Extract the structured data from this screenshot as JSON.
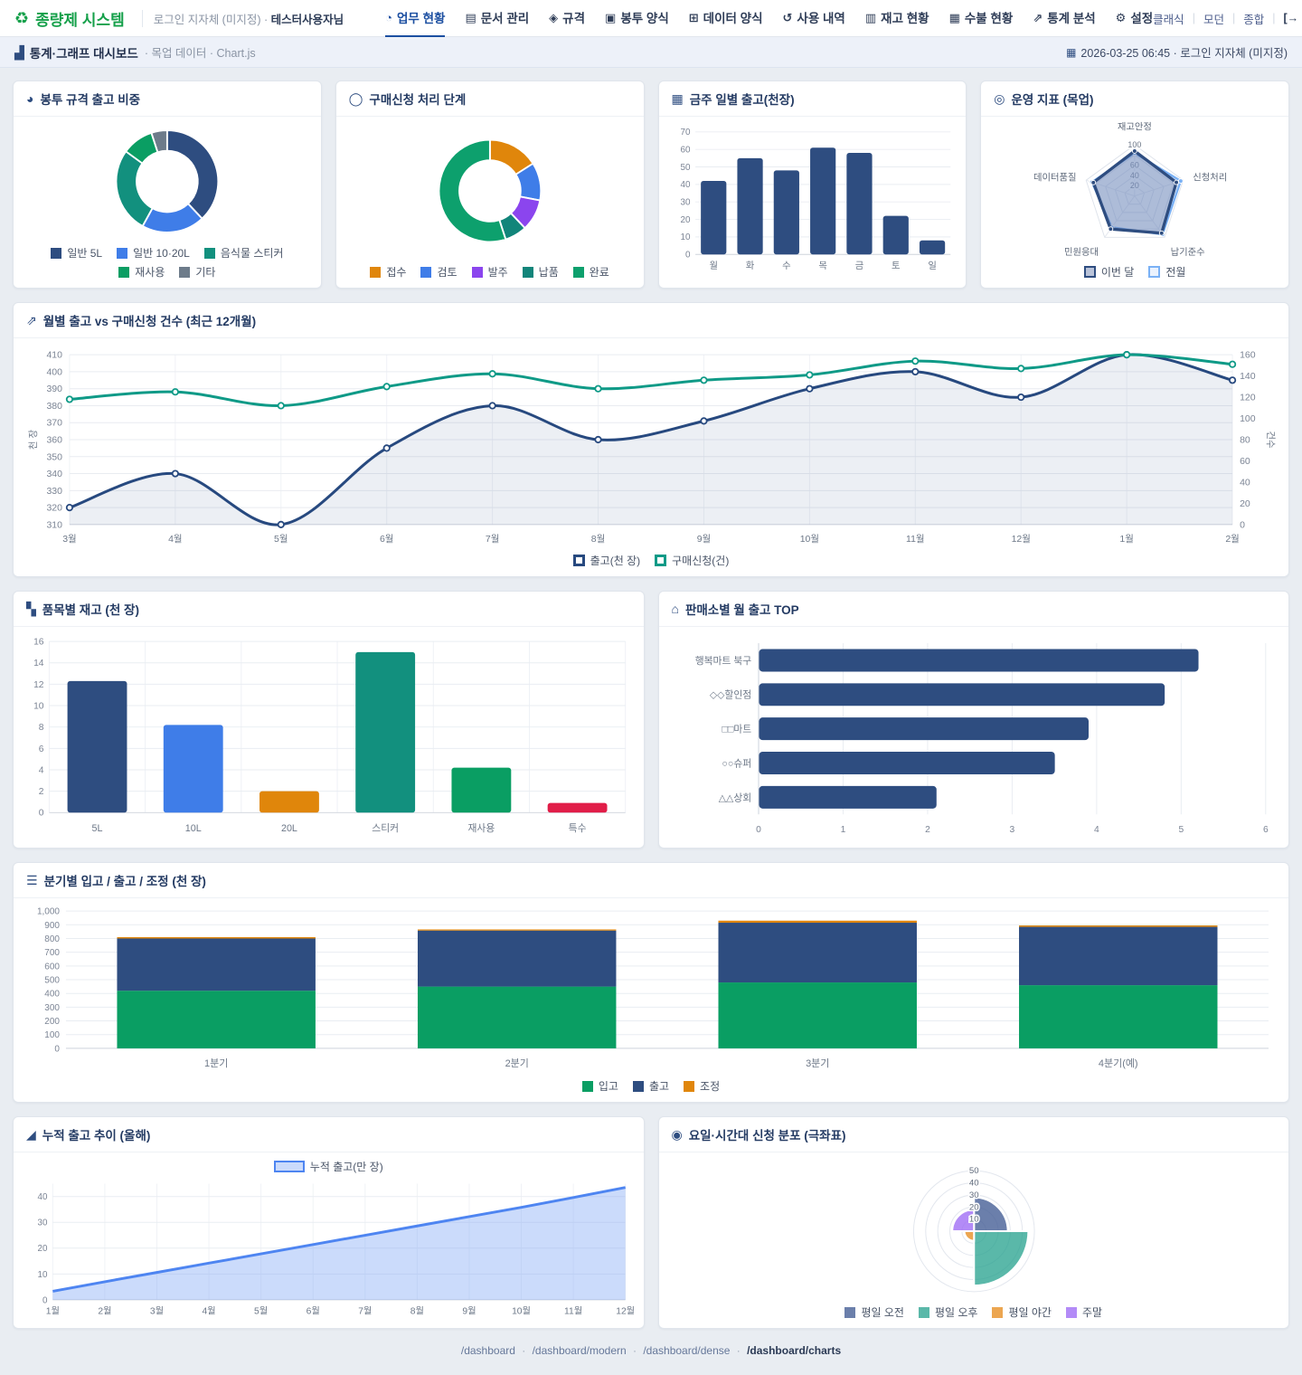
{
  "brand": {
    "name": "종량제 시스템",
    "context": "로그인 지자체 (미지정) ·",
    "user": "테스터사용자님"
  },
  "nav": {
    "items": [
      {
        "id": "work-status",
        "label": "업무 현황",
        "icon": "work-status-icon",
        "active": true
      },
      {
        "id": "documents",
        "label": "문서 관리",
        "icon": "documents-icon",
        "active": false
      },
      {
        "id": "specs",
        "label": "규격",
        "icon": "specs-icon",
        "active": false
      },
      {
        "id": "bag-forms",
        "label": "봉투 양식",
        "icon": "bag-form-icon",
        "active": false
      },
      {
        "id": "data-forms",
        "label": "데이터 양식",
        "icon": "data-form-icon",
        "active": false
      },
      {
        "id": "usage-history",
        "label": "사용 내역",
        "icon": "usage-history-icon",
        "active": false
      },
      {
        "id": "inventory",
        "label": "재고 현황",
        "icon": "inventory-icon",
        "active": false
      },
      {
        "id": "ledger",
        "label": "수불 현황",
        "icon": "ledger-icon",
        "active": false
      },
      {
        "id": "stats",
        "label": "통계 분석",
        "icon": "stats-icon",
        "active": false
      },
      {
        "id": "settings",
        "label": "설정",
        "icon": "settings-icon",
        "active": false
      }
    ],
    "quick_links": [
      "클래식",
      "모던",
      "종합"
    ]
  },
  "page_header": {
    "title": "통계·그래프 대시보드",
    "meta": "· 목업 데이터 · Chart.js",
    "datetime": "2026-03-25 06:45 · 로그인 지자체 (미지정)"
  },
  "footer": {
    "links": [
      "/dashboard",
      "/dashboard/modern",
      "/dashboard/dense",
      "/dashboard/charts"
    ],
    "current": "/dashboard/charts"
  },
  "chart_data": [
    {
      "id": "bag-share",
      "type": "doughnut",
      "icon": "pie-chart-icon",
      "title": "봉투 규격 출고 비중",
      "labels": [
        "일반 5L",
        "일반 10·20L",
        "음식물 스티커",
        "재사용",
        "기타"
      ],
      "values": [
        38,
        20,
        27,
        10,
        5
      ],
      "colors": [
        "#2e4d80",
        "#3f7de8",
        "#12907e",
        "#0a9e63",
        "#6d7b8a"
      ]
    },
    {
      "id": "request-stage",
      "type": "doughnut",
      "icon": "ring-icon",
      "title": "구매신청 처리 단계",
      "labels": [
        "접수",
        "검토",
        "발주",
        "납품",
        "완료"
      ],
      "values": [
        16,
        12,
        10,
        7,
        55
      ],
      "colors": [
        "#e0860b",
        "#3f7de8",
        "#8b45ee",
        "#12857a",
        "#0da06d"
      ]
    },
    {
      "id": "weekly-shipments",
      "type": "bar",
      "icon": "calendar-icon",
      "title": "금주 일별 출고(천장)",
      "small": true,
      "categories": [
        "월",
        "화",
        "수",
        "목",
        "금",
        "토",
        "일"
      ],
      "values": [
        42,
        55,
        48,
        61,
        58,
        22,
        8
      ],
      "colors": "#2e4d80",
      "ylim": [
        0,
        70
      ],
      "ystep": 10
    },
    {
      "id": "ops-radar",
      "type": "radar",
      "icon": "target-icon",
      "title": "운영 지표 (목업)",
      "axes": [
        "재고안정",
        "신청처리",
        "납기준수",
        "민원응대",
        "데이터품질"
      ],
      "max": 100,
      "ticks": [
        20,
        40,
        60,
        100
      ],
      "series": [
        {
          "name": "이번 달",
          "color": "#2e4d80",
          "fill": "rgba(99,123,171,0.45)",
          "values": [
            88,
            86,
            90,
            80,
            85
          ]
        },
        {
          "name": "전월",
          "color": "#7ab1f5",
          "fill": "rgba(170,205,250,0.25)",
          "values": [
            84,
            95,
            93,
            76,
            88
          ]
        }
      ]
    },
    {
      "id": "monthly-line",
      "type": "line2",
      "icon": "line-chart-icon",
      "title": "월별 출고 vs 구매신청 건수 (최근 12개월)",
      "x": [
        "3월",
        "4월",
        "5월",
        "6월",
        "7월",
        "8월",
        "9월",
        "10월",
        "11월",
        "12월",
        "1월",
        "2월"
      ],
      "left": {
        "title": "천 장",
        "min": 310,
        "max": 410,
        "step": 10
      },
      "right": {
        "title": "건수",
        "min": 0,
        "max": 160,
        "step": 20
      },
      "series": [
        {
          "name": "출고(천 장)",
          "axis": "left",
          "color": "#27497f",
          "fill": "rgba(46,77,128,0.09)",
          "values": [
            320,
            340,
            310,
            355,
            380,
            360,
            371,
            390,
            400,
            385,
            410,
            395
          ]
        },
        {
          "name": "구매신청(건)",
          "axis": "right",
          "color": "#0f9a87",
          "values": [
            118,
            125,
            112,
            130,
            142,
            128,
            136,
            141,
            154,
            147,
            160,
            151
          ]
        }
      ]
    },
    {
      "id": "stock-by-item",
      "type": "bar",
      "icon": "boxes-icon",
      "title": "품목별 재고 (천 장)",
      "categories": [
        "5L",
        "10L",
        "20L",
        "스티커",
        "재사용",
        "특수"
      ],
      "values": [
        12.3,
        8.2,
        2,
        15,
        4.2,
        0.9
      ],
      "colors": [
        "#2e4d80",
        "#3f7de8",
        "#e0860b",
        "#12907e",
        "#0a9e63",
        "#e11d48"
      ],
      "ylim": [
        0,
        16
      ],
      "ystep": 2,
      "vgrid": true
    },
    {
      "id": "top-stores",
      "type": "hbar",
      "icon": "store-icon",
      "title": "판매소별 월 출고 TOP",
      "categories": [
        "행복마트 북구",
        "◇◇할인점",
        "□□마트",
        "○○슈퍼",
        "△△상회"
      ],
      "values": [
        5.2,
        4.8,
        3.9,
        3.5,
        2.1
      ],
      "color": "#2e4d80",
      "xlim": [
        0,
        6
      ],
      "xstep": 1
    },
    {
      "id": "quarterly-flow",
      "type": "stacked",
      "icon": "layers-icon",
      "title": "분기별 입고 / 출고 / 조정 (천 장)",
      "categories": [
        "1분기",
        "2분기",
        "3분기",
        "4분기(예)"
      ],
      "series": [
        {
          "name": "입고",
          "color": "#0a9e63",
          "values": [
            420,
            450,
            480,
            460
          ]
        },
        {
          "name": "출고",
          "color": "#2e4d80",
          "values": [
            380,
            408,
            435,
            425
          ]
        },
        {
          "name": "조정",
          "color": "#e0860b",
          "values": [
            10,
            8,
            15,
            10
          ]
        }
      ],
      "ylim": [
        0,
        1000
      ],
      "ystep": 100
    },
    {
      "id": "cumulative-shipments",
      "type": "area",
      "icon": "area-chart-icon",
      "title": "누적 출고 추이 (올해)",
      "legend": "누적 출고(만 장)",
      "x": [
        "1월",
        "2월",
        "3월",
        "4월",
        "5월",
        "6월",
        "7월",
        "8월",
        "9월",
        "10월",
        "11월",
        "12월"
      ],
      "values": [
        3.3,
        7,
        10.6,
        14.2,
        17.8,
        21.4,
        25,
        28.6,
        32.2,
        35.8,
        39.6,
        43.5
      ],
      "color": "#4e85f1",
      "fill": "rgba(125,165,245,0.4)",
      "ylim": [
        0,
        45
      ],
      "ticks": [
        0,
        10,
        20,
        30,
        40
      ]
    },
    {
      "id": "time-distribution",
      "type": "polar",
      "icon": "polar-chart-icon",
      "title": "요일·시간대 신청 분포 (극좌표)",
      "labels": [
        "평일 오전",
        "평일 오후",
        "평일 야간",
        "주말"
      ],
      "values": [
        28,
        45,
        8,
        18
      ],
      "max": 50,
      "ticks": [
        10,
        20,
        30,
        40,
        50
      ],
      "colors": [
        "rgba(70,95,150,0.8)",
        "rgba(35,160,140,0.75)",
        "rgba(233,150,50,0.85)",
        "rgba(160,110,245,0.8)"
      ]
    }
  ]
}
